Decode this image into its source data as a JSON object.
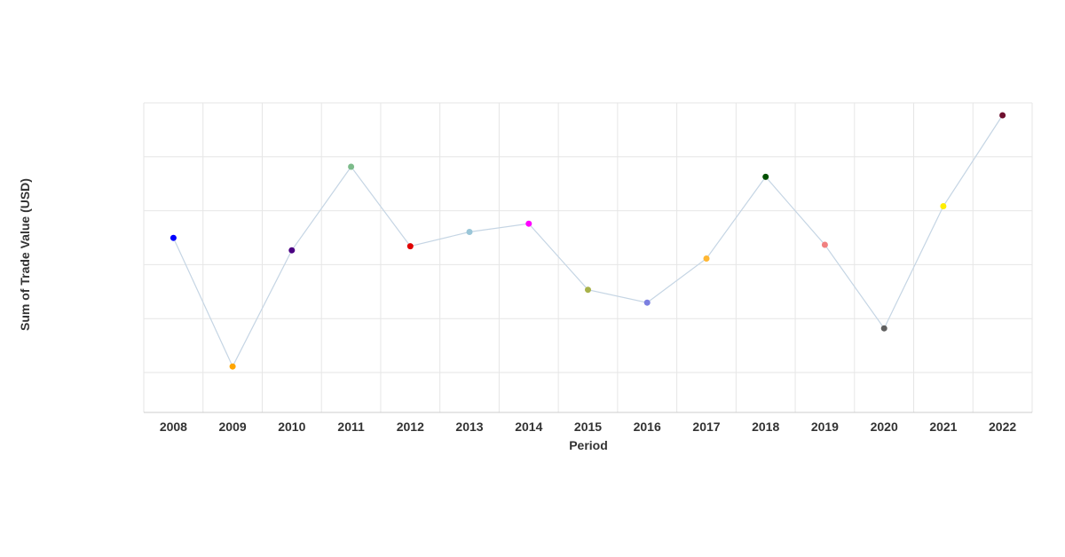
{
  "chart_data": {
    "type": "line",
    "title": "",
    "xlabel": "Period",
    "ylabel": "Sum of Trade Value (USD)",
    "categories": [
      "2008",
      "2009",
      "2010",
      "2011",
      "2012",
      "2013",
      "2014",
      "2015",
      "2016",
      "2017",
      "2018",
      "2019",
      "2020",
      "2021",
      "2022"
    ],
    "values": [
      3.05,
      0.25,
      2.78,
      4.6,
      2.87,
      3.18,
      3.36,
      1.92,
      1.64,
      2.6,
      4.38,
      2.9,
      1.08,
      3.74,
      5.72
    ],
    "ylim": [
      -0.75,
      5.99
    ],
    "y_ticks_shown": false,
    "grid": true,
    "legend": "none",
    "line_color": "#c5d5e4",
    "point_colors": [
      "#0000ff",
      "#ffa500",
      "#4b0082",
      "#7cbb8a",
      "#e00000",
      "#9ac6d8",
      "#ff00ff",
      "#a8b24a",
      "#7b7fe0",
      "#ffb733",
      "#005000",
      "#f08080",
      "#606060",
      "#ffee00",
      "#6e0f2e"
    ]
  }
}
